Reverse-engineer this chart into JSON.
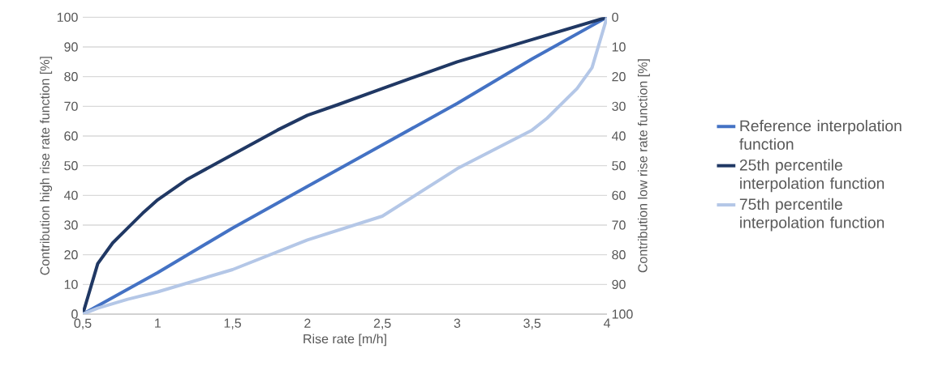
{
  "chart_data": {
    "type": "line",
    "xlabel": "Rise rate [m/h]",
    "ylabel": "Contribution high rise rate function [%]",
    "y2label": "Contribution low rise rate function [%]",
    "xlim": [
      0.5,
      4
    ],
    "xticks": [
      {
        "value": 0.5,
        "label": "0,5"
      },
      1,
      {
        "value": 1.5,
        "label": "1,5"
      },
      2,
      {
        "value": 2.5,
        "label": "2,5"
      },
      3,
      {
        "value": 3.5,
        "label": "3,5"
      },
      4
    ],
    "ylim": [
      0,
      100
    ],
    "yticks": [
      0,
      10,
      20,
      30,
      40,
      50,
      60,
      70,
      80,
      90,
      100
    ],
    "y2lim": [
      100,
      0
    ],
    "y2ticks": [
      0,
      10,
      20,
      30,
      40,
      50,
      60,
      70,
      80,
      90,
      100
    ],
    "grid": "y",
    "legend": "right",
    "marker": "none",
    "line_style": "solid",
    "series": [
      {
        "name": "Reference interpolation function",
        "color": "#4472c4",
        "x": [
          0.5,
          1,
          1.5,
          2,
          2.5,
          3,
          3.5,
          4
        ],
        "values": [
          0,
          14,
          29,
          43,
          57,
          71,
          86,
          100
        ]
      },
      {
        "name": "25th percentile interpolation function",
        "color": "#203864",
        "x": [
          0.5,
          0.6,
          0.7,
          0.8,
          0.9,
          1,
          1.2,
          1.4,
          1.6,
          1.8,
          2,
          2.2,
          2.5,
          3,
          3.5,
          4
        ],
        "values": [
          0,
          17,
          24,
          29,
          34,
          38.5,
          45.5,
          51,
          56.5,
          62,
          67,
          70.5,
          76,
          85,
          92.5,
          100
        ]
      },
      {
        "name": "75th percentile interpolation function",
        "color": "#b4c7e7",
        "x": [
          0.5,
          0.6,
          0.8,
          1,
          1.5,
          2,
          2.5,
          3,
          3.5,
          3.6,
          3.7,
          3.8,
          3.9,
          4
        ],
        "values": [
          0,
          2,
          5,
          7.5,
          15,
          25,
          33,
          49,
          62,
          66,
          71,
          76,
          83,
          100
        ]
      }
    ]
  }
}
